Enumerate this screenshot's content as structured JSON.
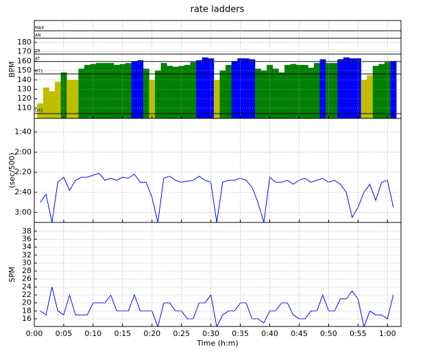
{
  "chart_data": [
    {
      "type": "area",
      "title": "rate ladders",
      "ylabel": "BPM",
      "x": [
        1,
        2,
        3,
        4,
        5,
        6,
        7,
        8,
        9,
        10,
        11,
        12,
        13,
        14,
        15,
        16,
        17,
        18,
        19,
        20,
        21,
        22,
        23,
        24,
        25,
        26,
        27,
        28,
        29,
        30,
        31,
        32,
        33,
        34,
        35,
        36,
        37,
        38,
        39,
        40,
        41,
        42,
        43,
        44,
        45,
        46,
        47,
        48,
        49,
        50,
        51,
        52,
        53,
        54,
        55,
        56,
        57,
        58,
        59,
        60,
        61
      ],
      "values": [
        115,
        132,
        128,
        138,
        148,
        140,
        140,
        152,
        156,
        157,
        158,
        158,
        158,
        156,
        157,
        158,
        160,
        161,
        152,
        140,
        150,
        158,
        155,
        154,
        155,
        156,
        159,
        161,
        164,
        163,
        140,
        150,
        156,
        160,
        163,
        163,
        162,
        152,
        150,
        156,
        152,
        148,
        156,
        157,
        156,
        156,
        153,
        158,
        162,
        158,
        158,
        162,
        164,
        163,
        163,
        140,
        145,
        155,
        157,
        159,
        160
      ],
      "zones": [
        {
          "label": "UT2",
          "value": 104.1
        },
        {
          "label": "UT1",
          "value": 146.4
        },
        {
          "label": "AT",
          "value": 159.6
        },
        {
          "label": "TR",
          "value": 167.6
        },
        {
          "label": "AN",
          "value": 184.4
        },
        {
          "label": "MAX",
          "value": 192.4
        }
      ],
      "zone_colors": [
        "#bfbf00",
        "#bfbf00",
        "#008000",
        "#0000ff",
        "#0000ff",
        "#0000ff",
        "#0000ff"
      ],
      "xlim": [
        0,
        62.3
      ],
      "ylim": [
        99,
        203.3
      ],
      "xticks": [
        0,
        5,
        10,
        15,
        20,
        25,
        30,
        35,
        40,
        45,
        50,
        55,
        60
      ],
      "yticks": [
        110,
        120,
        130,
        140,
        150,
        160,
        170,
        180
      ],
      "grid": true
    },
    {
      "type": "line",
      "ylabel": "(sec/500)",
      "color": "#0000ff",
      "invert_y": true,
      "x": [
        1,
        2,
        3,
        4,
        5,
        6,
        7,
        8,
        9,
        10,
        11,
        12,
        13,
        14,
        15,
        16,
        17,
        18,
        19,
        20,
        21,
        22,
        23,
        24,
        25,
        26,
        27,
        28,
        29,
        30,
        31,
        32,
        33,
        34,
        35,
        36,
        37,
        38,
        39,
        40,
        41,
        42,
        43,
        44,
        45,
        46,
        47,
        48,
        49,
        50,
        51,
        52,
        53,
        54,
        55,
        56,
        57,
        58,
        59,
        60,
        61
      ],
      "values": [
        170,
        162,
        190,
        150,
        145,
        158,
        148,
        145,
        145,
        143,
        141,
        148,
        146,
        148,
        145,
        146,
        142,
        150,
        150,
        165,
        190,
        146,
        144,
        148,
        150,
        149,
        148,
        144,
        148,
        150,
        190,
        150,
        148,
        148,
        146,
        148,
        155,
        170,
        190,
        145,
        150,
        150,
        148,
        152,
        148,
        146,
        150,
        148,
        146,
        150,
        148,
        152,
        160,
        185,
        175,
        160,
        152,
        168,
        150,
        148,
        175
      ],
      "xlim": [
        0,
        62.3
      ],
      "ylim": [
        86.4,
        190
      ],
      "xticks": [
        0,
        5,
        10,
        15,
        20,
        25,
        30,
        35,
        40,
        45,
        50,
        55,
        60
      ],
      "yticks": [
        {
          "value": 100,
          "label": "1:40"
        },
        {
          "value": 120,
          "label": "2:00"
        },
        {
          "value": 140,
          "label": "2:20"
        },
        {
          "value": 160,
          "label": "2:40"
        },
        {
          "value": 180,
          "label": "3:00"
        }
      ],
      "grid": true
    },
    {
      "type": "line",
      "ylabel": "SPM",
      "xlabel": "Time (h:m)",
      "color": "#0000ff",
      "x": [
        1,
        2,
        3,
        4,
        5,
        6,
        7,
        8,
        9,
        10,
        11,
        12,
        13,
        14,
        15,
        16,
        17,
        18,
        19,
        20,
        21,
        22,
        23,
        24,
        25,
        26,
        27,
        28,
        29,
        30,
        31,
        32,
        33,
        34,
        35,
        36,
        37,
        38,
        39,
        40,
        41,
        42,
        43,
        44,
        45,
        46,
        47,
        48,
        49,
        50,
        51,
        52,
        53,
        54,
        55,
        56,
        57,
        58,
        59,
        60,
        61
      ],
      "values": [
        18,
        17,
        24,
        18,
        17,
        22,
        17,
        17,
        17,
        20,
        20,
        20,
        22,
        18,
        18,
        18,
        22,
        18,
        18,
        18,
        14,
        20,
        20,
        18,
        18,
        16,
        16,
        20,
        20,
        22,
        14,
        17,
        18,
        18,
        20,
        20,
        16,
        16,
        15,
        18,
        18,
        20,
        20,
        17,
        16,
        16,
        18,
        18,
        22,
        18,
        18,
        21,
        21,
        23,
        21,
        14,
        18,
        17,
        17,
        16,
        22
      ],
      "xlim": [
        0,
        62.3
      ],
      "ylim": [
        14.1,
        40.2
      ],
      "xticks": [
        {
          "value": 0,
          "label": "0:00"
        },
        {
          "value": 5,
          "label": "0:05"
        },
        {
          "value": 10,
          "label": "0:10"
        },
        {
          "value": 15,
          "label": "0:15"
        },
        {
          "value": 20,
          "label": "0:20"
        },
        {
          "value": 25,
          "label": "0:25"
        },
        {
          "value": 30,
          "label": "0:30"
        },
        {
          "value": 35,
          "label": "0:35"
        },
        {
          "value": 40,
          "label": "0:40"
        },
        {
          "value": 45,
          "label": "0:45"
        },
        {
          "value": 50,
          "label": "0:50"
        },
        {
          "value": 55,
          "label": "0:55"
        },
        {
          "value": 60,
          "label": "1:00"
        }
      ],
      "yticks": [
        16,
        18,
        20,
        22,
        24,
        26,
        28,
        30,
        32,
        34,
        36,
        38
      ],
      "grid": true
    }
  ]
}
